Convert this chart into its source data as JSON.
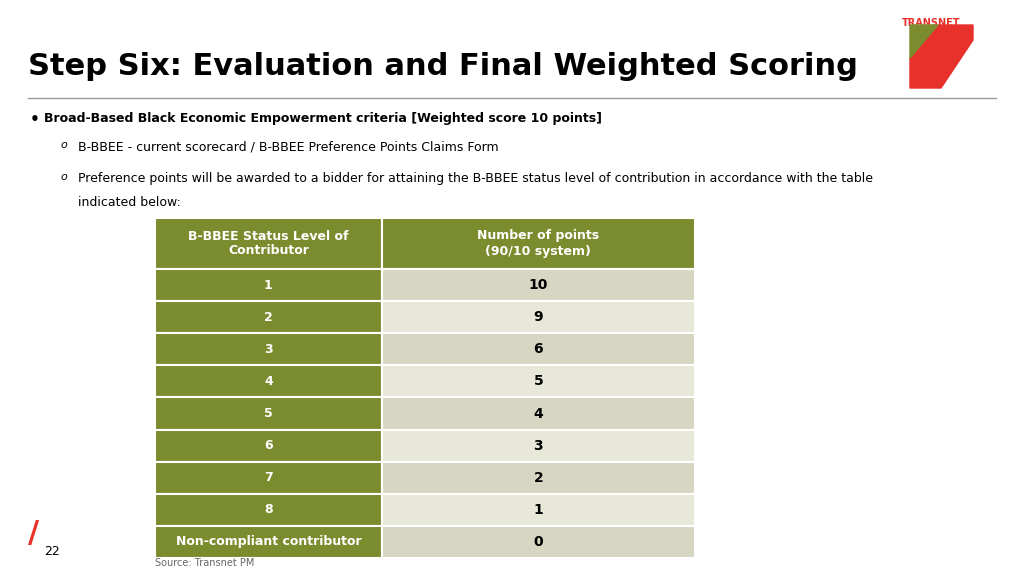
{
  "title": "Step Six: Evaluation and Final Weighted Scoring",
  "title_fontsize": 22,
  "bg_color": "#ffffff",
  "title_color": "#000000",
  "logo_text": "TRANSNET",
  "divider_color": "#999999",
  "bullet_bold": "Broad-Based Black Economic Empowerment criteria [Weighted score 10 points]",
  "sub1": "B-BBEE - current scorecard / B-BBEE Preference Points Claims Form",
  "sub2": "Preference points will be awarded to a bidder for attaining the B-BBEE status level of contribution in accordance with the table",
  "sub2b": "indicated below:",
  "table_header_bg": "#7b8c2e",
  "table_header_text": "#ffffff",
  "table_row_bg_odd": "#d6d6c2",
  "table_row_bg_even": "#e8e8d8",
  "table_last_row_bg": "#7b8c2e",
  "table_last_row_text": "#ffffff",
  "table_data_text": "#000000",
  "col1_header": "B-BBEE Status Level of\nContributor",
  "col2_header": "Number of points\n(90/10 system)",
  "rows": [
    [
      "1",
      "10"
    ],
    [
      "2",
      "9"
    ],
    [
      "3",
      "6"
    ],
    [
      "4",
      "5"
    ],
    [
      "5",
      "4"
    ],
    [
      "6",
      "3"
    ],
    [
      "7",
      "2"
    ],
    [
      "8",
      "1"
    ],
    [
      "Non-compliant contributor",
      "0"
    ]
  ],
  "page_number": "22",
  "source_text": "Source: Transnet PM",
  "slash_color": "#e8312a",
  "transnet_red": "#e8312a",
  "transnet_green": "#7b8c2e"
}
